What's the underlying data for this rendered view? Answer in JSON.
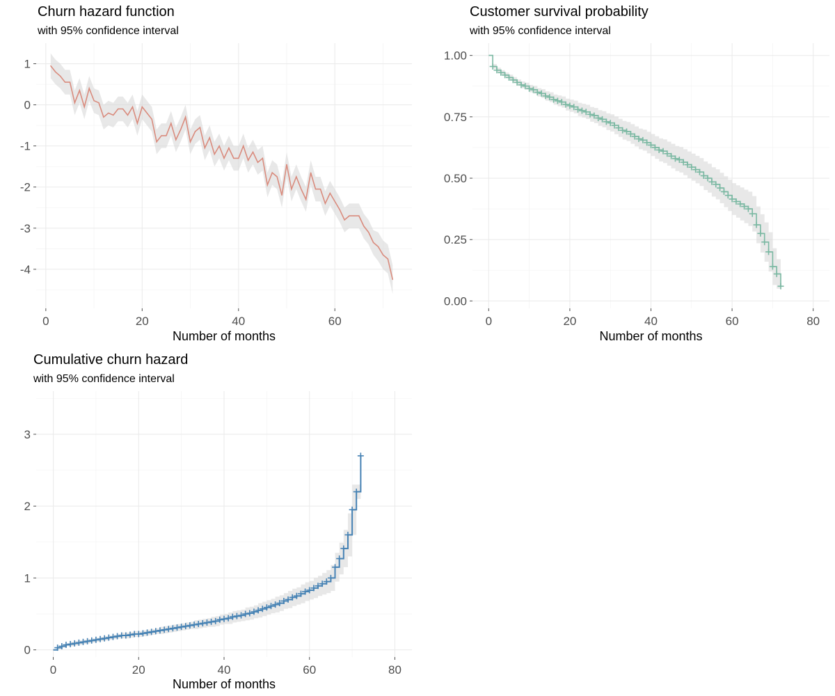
{
  "colors": {
    "hazard_line": "#d98b7d",
    "survival_line": "#7ab8a2",
    "cumhaz_line": "#4682b4",
    "ci_band": "#d6d6d6"
  },
  "chart_data": [
    {
      "id": "hazard",
      "type": "line",
      "title": "Churn hazard function",
      "subtitle": "with 95% confidence interval",
      "xlabel": "Number of months",
      "ylabel": "",
      "xlim": [
        -2,
        76
      ],
      "ylim": [
        -4.95,
        1.5
      ],
      "xticks": [
        0,
        20,
        40,
        60
      ],
      "yticks": [
        1,
        0,
        -1,
        -2,
        -3,
        -4
      ],
      "xtick_labels": [
        "0",
        "20",
        "40",
        "60"
      ],
      "ytick_labels": [
        "1",
        "0",
        "-1",
        "-2",
        "-3",
        "-4"
      ],
      "x": [
        1,
        2,
        3,
        4,
        5,
        6,
        7,
        8,
        9,
        10,
        11,
        12,
        13,
        14,
        15,
        16,
        17,
        18,
        19,
        20,
        21,
        22,
        23,
        24,
        25,
        26,
        27,
        28,
        29,
        30,
        31,
        32,
        33,
        34,
        35,
        36,
        37,
        38,
        39,
        40,
        41,
        42,
        43,
        44,
        45,
        46,
        47,
        48,
        49,
        50,
        51,
        52,
        53,
        54,
        55,
        56,
        57,
        58,
        59,
        60,
        61,
        62,
        63,
        64,
        65,
        66,
        67,
        68,
        69,
        70,
        71,
        72
      ],
      "y": [
        0.95,
        0.8,
        0.7,
        0.55,
        0.55,
        0.05,
        0.35,
        -0.05,
        0.4,
        0.1,
        0.05,
        -0.3,
        -0.2,
        -0.25,
        -0.1,
        -0.1,
        -0.25,
        -0.05,
        -0.45,
        -0.05,
        -0.2,
        -0.35,
        -0.9,
        -0.75,
        -0.75,
        -0.45,
        -0.85,
        -0.6,
        -0.3,
        -0.9,
        -0.65,
        -0.55,
        -1.05,
        -0.8,
        -1.2,
        -1.0,
        -1.3,
        -1.05,
        -1.3,
        -1.3,
        -1.0,
        -1.35,
        -1.15,
        -1.4,
        -1.3,
        -1.95,
        -1.65,
        -1.75,
        -2.2,
        -1.45,
        -2.05,
        -1.75,
        -2.05,
        -2.3,
        -1.65,
        -2.05,
        -2.05,
        -2.4,
        -2.15,
        -2.35,
        -2.55,
        -2.8,
        -2.7,
        -2.7,
        -2.7,
        -2.95,
        -3.1,
        -3.35,
        -3.45,
        -3.65,
        -3.75,
        -4.25
      ],
      "ci_halfwidth": [
        0.3,
        0.3,
        0.3,
        0.3,
        0.3,
        0.3,
        0.3,
        0.3,
        0.3,
        0.3,
        0.3,
        0.3,
        0.3,
        0.3,
        0.3,
        0.3,
        0.3,
        0.3,
        0.3,
        0.3,
        0.3,
        0.3,
        0.3,
        0.3,
        0.3,
        0.3,
        0.3,
        0.3,
        0.3,
        0.3,
        0.3,
        0.3,
        0.3,
        0.3,
        0.3,
        0.3,
        0.3,
        0.3,
        0.3,
        0.3,
        0.3,
        0.3,
        0.3,
        0.3,
        0.3,
        0.3,
        0.3,
        0.3,
        0.3,
        0.3,
        0.3,
        0.3,
        0.3,
        0.3,
        0.3,
        0.3,
        0.3,
        0.3,
        0.3,
        0.3,
        0.3,
        0.3,
        0.3,
        0.3,
        0.3,
        0.3,
        0.3,
        0.3,
        0.35,
        0.35,
        0.35,
        0.35
      ]
    },
    {
      "id": "survival",
      "type": "line",
      "step": true,
      "censor_marks": true,
      "title": "Customer survival probability",
      "subtitle": "with 95% confidence interval",
      "xlabel": "Number of months",
      "ylabel": "",
      "xlim": [
        -4,
        84
      ],
      "ylim": [
        -0.03,
        1.05
      ],
      "xticks": [
        0,
        20,
        40,
        60,
        80
      ],
      "yticks": [
        0,
        0.25,
        0.5,
        0.75,
        1.0
      ],
      "xtick_labels": [
        "0",
        "20",
        "40",
        "60",
        "80"
      ],
      "ytick_labels": [
        "0.00",
        "0.25",
        "0.50",
        "0.75",
        "1.00"
      ],
      "x": [
        0,
        1,
        2,
        3,
        4,
        5,
        6,
        7,
        8,
        9,
        10,
        11,
        12,
        13,
        14,
        15,
        16,
        17,
        18,
        19,
        20,
        21,
        22,
        23,
        24,
        25,
        26,
        27,
        28,
        29,
        30,
        31,
        32,
        33,
        34,
        35,
        36,
        37,
        38,
        39,
        40,
        41,
        42,
        43,
        44,
        45,
        46,
        47,
        48,
        49,
        50,
        51,
        52,
        53,
        54,
        55,
        56,
        57,
        58,
        59,
        60,
        61,
        62,
        63,
        64,
        65,
        66,
        67,
        68,
        69,
        70,
        71,
        72
      ],
      "y": [
        1.0,
        0.955,
        0.94,
        0.93,
        0.92,
        0.91,
        0.9,
        0.89,
        0.88,
        0.875,
        0.865,
        0.86,
        0.85,
        0.845,
        0.835,
        0.83,
        0.82,
        0.815,
        0.81,
        0.8,
        0.795,
        0.79,
        0.78,
        0.775,
        0.77,
        0.76,
        0.755,
        0.745,
        0.74,
        0.73,
        0.725,
        0.715,
        0.705,
        0.695,
        0.69,
        0.68,
        0.67,
        0.66,
        0.655,
        0.645,
        0.635,
        0.625,
        0.615,
        0.61,
        0.6,
        0.59,
        0.58,
        0.575,
        0.565,
        0.555,
        0.545,
        0.535,
        0.525,
        0.51,
        0.5,
        0.485,
        0.475,
        0.46,
        0.445,
        0.43,
        0.415,
        0.405,
        0.395,
        0.385,
        0.375,
        0.355,
        0.31,
        0.275,
        0.24,
        0.2,
        0.14,
        0.11,
        0.06
      ],
      "ci_halfwidth": [
        0,
        0.01,
        0.01,
        0.01,
        0.01,
        0.012,
        0.012,
        0.012,
        0.014,
        0.014,
        0.015,
        0.016,
        0.017,
        0.018,
        0.019,
        0.02,
        0.021,
        0.022,
        0.023,
        0.024,
        0.025,
        0.026,
        0.027,
        0.028,
        0.029,
        0.03,
        0.031,
        0.032,
        0.033,
        0.034,
        0.035,
        0.036,
        0.037,
        0.038,
        0.039,
        0.04,
        0.041,
        0.042,
        0.043,
        0.044,
        0.045,
        0.046,
        0.047,
        0.048,
        0.049,
        0.05,
        0.051,
        0.052,
        0.053,
        0.054,
        0.055,
        0.056,
        0.057,
        0.058,
        0.059,
        0.06,
        0.061,
        0.062,
        0.063,
        0.064,
        0.065,
        0.066,
        0.067,
        0.068,
        0.07,
        0.072,
        0.075,
        0.078,
        0.08,
        0.08,
        0.075,
        0.06,
        0.04
      ]
    },
    {
      "id": "cumhaz",
      "type": "line",
      "step": true,
      "censor_marks": true,
      "title": "Cumulative churn hazard",
      "subtitle": "with 95% confidence interval",
      "xlabel": "Number of months",
      "ylabel": "",
      "xlim": [
        -4,
        84
      ],
      "ylim": [
        -0.1,
        3.6
      ],
      "xticks": [
        0,
        20,
        40,
        60,
        80
      ],
      "yticks": [
        0,
        1,
        2,
        3
      ],
      "xtick_labels": [
        "0",
        "20",
        "40",
        "60",
        "80"
      ],
      "ytick_labels": [
        "0",
        "1",
        "2",
        "3"
      ],
      "x": [
        0,
        1,
        2,
        3,
        4,
        5,
        6,
        7,
        8,
        9,
        10,
        11,
        12,
        13,
        14,
        15,
        16,
        17,
        18,
        19,
        20,
        21,
        22,
        23,
        24,
        25,
        26,
        27,
        28,
        29,
        30,
        31,
        32,
        33,
        34,
        35,
        36,
        37,
        38,
        39,
        40,
        41,
        42,
        43,
        44,
        45,
        46,
        47,
        48,
        49,
        50,
        51,
        52,
        53,
        54,
        55,
        56,
        57,
        58,
        59,
        60,
        61,
        62,
        63,
        64,
        65,
        66,
        67,
        68,
        69,
        70,
        71,
        72
      ],
      "y": [
        0.0,
        0.03,
        0.05,
        0.07,
        0.08,
        0.09,
        0.1,
        0.11,
        0.12,
        0.13,
        0.14,
        0.15,
        0.16,
        0.17,
        0.18,
        0.19,
        0.2,
        0.2,
        0.21,
        0.22,
        0.22,
        0.23,
        0.24,
        0.25,
        0.26,
        0.27,
        0.28,
        0.29,
        0.3,
        0.31,
        0.32,
        0.33,
        0.34,
        0.35,
        0.36,
        0.37,
        0.38,
        0.39,
        0.4,
        0.42,
        0.43,
        0.44,
        0.46,
        0.47,
        0.48,
        0.5,
        0.51,
        0.53,
        0.55,
        0.57,
        0.59,
        0.61,
        0.63,
        0.65,
        0.68,
        0.7,
        0.73,
        0.75,
        0.78,
        0.81,
        0.83,
        0.86,
        0.89,
        0.92,
        0.95,
        1.0,
        1.15,
        1.27,
        1.41,
        1.6,
        1.95,
        2.2,
        2.7
      ],
      "ci_halfwidth": [
        0,
        0.02,
        0.02,
        0.02,
        0.03,
        0.03,
        0.03,
        0.03,
        0.03,
        0.03,
        0.03,
        0.03,
        0.03,
        0.03,
        0.03,
        0.03,
        0.04,
        0.04,
        0.04,
        0.04,
        0.04,
        0.04,
        0.04,
        0.04,
        0.04,
        0.05,
        0.05,
        0.05,
        0.05,
        0.05,
        0.05,
        0.05,
        0.05,
        0.06,
        0.06,
        0.06,
        0.06,
        0.07,
        0.07,
        0.07,
        0.07,
        0.08,
        0.08,
        0.08,
        0.08,
        0.09,
        0.09,
        0.09,
        0.1,
        0.1,
        0.1,
        0.1,
        0.11,
        0.11,
        0.11,
        0.12,
        0.12,
        0.12,
        0.13,
        0.13,
        0.13,
        0.14,
        0.14,
        0.15,
        0.16,
        0.18,
        0.2,
        0.22,
        0.26,
        0.3,
        0.35,
        0.1,
        0.1
      ]
    }
  ]
}
